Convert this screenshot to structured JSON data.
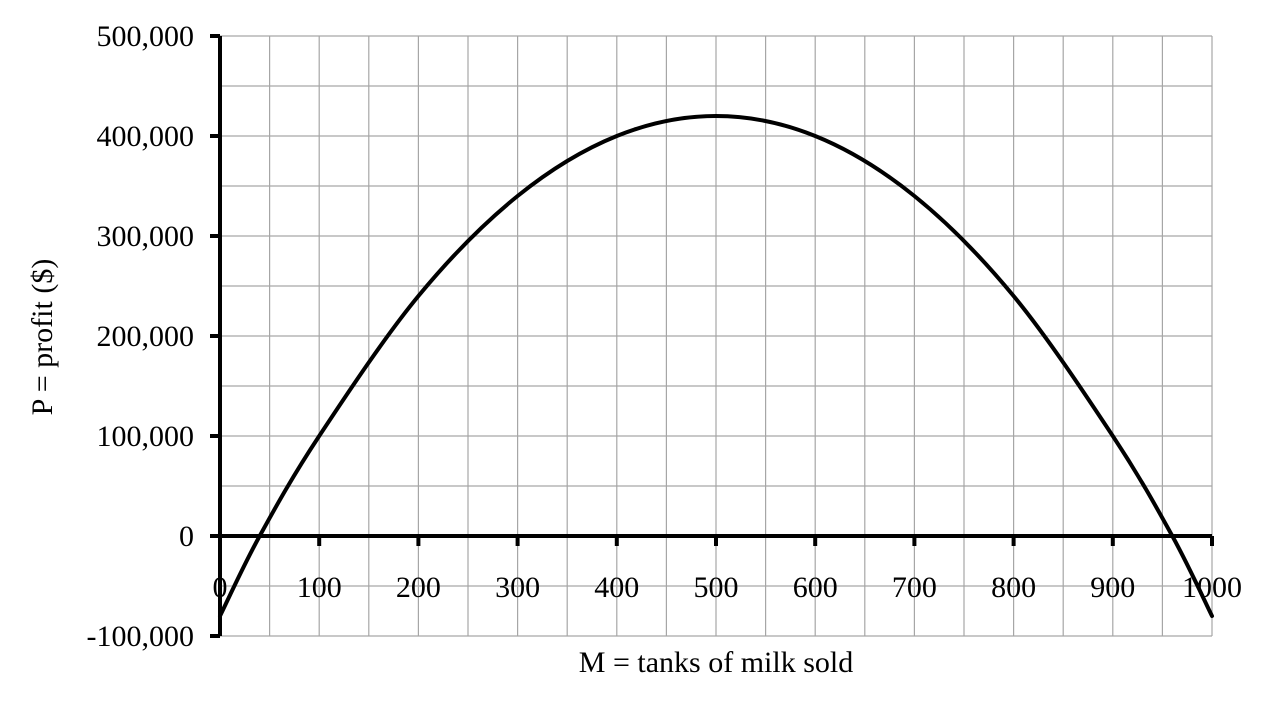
{
  "chart_data": {
    "type": "line",
    "title": "",
    "xlabel": "M = tanks of milk sold",
    "ylabel": "P = profit ($)",
    "xlim": [
      0,
      1000
    ],
    "ylim": [
      -100000,
      500000
    ],
    "grid": true,
    "x_ticks": [
      "0",
      "100",
      "200",
      "300",
      "400",
      "500",
      "600",
      "700",
      "800",
      "900",
      "1000"
    ],
    "y_ticks": [
      "-100,000",
      "0",
      "100,000",
      "200,000",
      "300,000",
      "400,000",
      "500,000"
    ],
    "series": [
      {
        "x": [
          0,
          40,
          100,
          200,
          300,
          400,
          500,
          600,
          700,
          800,
          900,
          960,
          1000
        ],
        "y": [
          -80000,
          0,
          100000,
          240000,
          340000,
          400000,
          420000,
          400000,
          340000,
          240000,
          100000,
          0,
          -80000
        ],
        "color": "#000000"
      }
    ]
  }
}
